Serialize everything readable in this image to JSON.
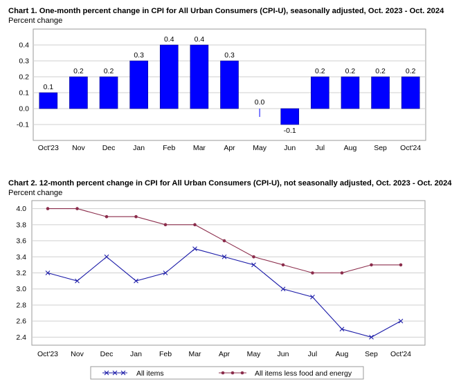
{
  "chart_data": [
    {
      "type": "bar",
      "title": "Chart 1. One-month percent change in CPI for All Urban Consumers (CPI-U), seasonally adjusted, Oct. 2023 - Oct. 2024",
      "ylabel": "Percent change",
      "categories": [
        "Oct'23",
        "Nov",
        "Dec",
        "Jan",
        "Feb",
        "Mar",
        "Apr",
        "May",
        "Jun",
        "Jul",
        "Aug",
        "Sep",
        "Oct'24"
      ],
      "values": [
        0.1,
        0.2,
        0.2,
        0.3,
        0.4,
        0.4,
        0.3,
        0.0,
        -0.1,
        0.2,
        0.2,
        0.2,
        0.2
      ],
      "data_labels": [
        "0.1",
        "0.2",
        "0.2",
        "0.3",
        "0.4",
        "0.4",
        "0.3",
        "0.0",
        "-0.1",
        "0.2",
        "0.2",
        "0.2",
        "0.2"
      ],
      "ylim": [
        -0.2,
        0.5
      ],
      "yticks": [
        "-0.1",
        "0.0",
        "0.1",
        "0.2",
        "0.3",
        "0.4"
      ],
      "ytick_values": [
        -0.1,
        0.0,
        0.1,
        0.2,
        0.3,
        0.4
      ],
      "grid": true,
      "bar_color": "#0000ff"
    },
    {
      "type": "line",
      "title": "Chart 2. 12-month percent change in CPI for All Urban Consumers (CPI-U), not seasonally adjusted, Oct. 2023 - Oct. 2024",
      "ylabel": "Percent change",
      "categories": [
        "Oct'23",
        "Nov",
        "Dec",
        "Jan",
        "Feb",
        "Mar",
        "Apr",
        "May",
        "Jun",
        "Jul",
        "Aug",
        "Sep",
        "Oct'24"
      ],
      "series": [
        {
          "name": "All items",
          "values": [
            3.2,
            3.1,
            3.4,
            3.1,
            3.2,
            3.5,
            3.4,
            3.3,
            3.0,
            2.9,
            2.5,
            2.4,
            2.6
          ],
          "color": "#1a1aa8",
          "marker": "x"
        },
        {
          "name": "All items less food and energy",
          "values": [
            4.0,
            4.0,
            3.9,
            3.9,
            3.8,
            3.8,
            3.6,
            3.4,
            3.3,
            3.2,
            3.2,
            3.3,
            3.3
          ],
          "color": "#8b2c4b",
          "marker": "circle"
        }
      ],
      "ylim": [
        2.3,
        4.1
      ],
      "yticks": [
        "2.4",
        "2.6",
        "2.8",
        "3.0",
        "3.2",
        "3.4",
        "3.6",
        "3.8",
        "4.0"
      ],
      "ytick_values": [
        2.4,
        2.6,
        2.8,
        3.0,
        3.2,
        3.4,
        3.6,
        3.8,
        4.0
      ],
      "grid": true,
      "legend": "bottom"
    }
  ]
}
